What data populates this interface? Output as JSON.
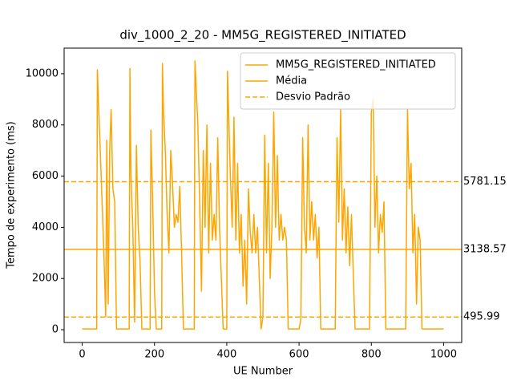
{
  "chart_data": {
    "type": "line",
    "title": "div_1000_2_20 - MM5G_REGISTERED_INITIATED",
    "x_label": "UE Number",
    "y_label": "Tempo de experimento (ms)",
    "xlim": [
      -50,
      1050
    ],
    "ylim": [
      -500,
      11000
    ],
    "xticks": [
      0,
      200,
      400,
      600,
      800,
      1000
    ],
    "yticks": [
      0,
      2000,
      4000,
      6000,
      8000,
      10000
    ],
    "grid": false,
    "legend": "upper right",
    "series": [
      {
        "name": "MM5G_REGISTERED_INITIATED",
        "color": "#ffa500",
        "x": [
          0,
          40,
          42,
          60,
          65,
          68,
          72,
          76,
          80,
          85,
          90,
          95,
          130,
          132,
          135,
          140,
          145,
          150,
          155,
          160,
          165,
          188,
          190,
          195,
          200,
          205,
          220,
          222,
          225,
          230,
          235,
          240,
          245,
          250,
          255,
          260,
          265,
          270,
          275,
          280,
          310,
          312,
          320,
          325,
          330,
          335,
          340,
          345,
          350,
          355,
          360,
          365,
          370,
          375,
          380,
          385,
          390,
          400,
          402,
          410,
          415,
          420,
          425,
          430,
          435,
          440,
          445,
          450,
          455,
          460,
          465,
          470,
          475,
          480,
          485,
          490,
          495,
          500,
          505,
          510,
          515,
          520,
          525,
          530,
          535,
          540,
          545,
          550,
          555,
          560,
          565,
          570,
          600,
          605,
          610,
          615,
          620,
          625,
          630,
          635,
          640,
          645,
          650,
          655,
          660,
          700,
          705,
          710,
          715,
          720,
          725,
          730,
          735,
          740,
          745,
          750,
          755,
          795,
          800,
          805,
          810,
          815,
          820,
          825,
          830,
          835,
          840,
          895,
          900,
          905,
          910,
          915,
          920,
          925,
          930,
          935,
          940,
          1000
        ],
        "values": [
          30,
          30,
          10150,
          3000,
          500,
          7400,
          1000,
          7000,
          8600,
          5500,
          5000,
          30,
          30,
          10200,
          6000,
          4000,
          300,
          7200,
          4000,
          2700,
          30,
          30,
          7800,
          5000,
          1500,
          30,
          30,
          10400,
          8500,
          7000,
          4500,
          3000,
          7000,
          5700,
          4000,
          4500,
          4200,
          5600,
          3000,
          30,
          30,
          10500,
          8000,
          5000,
          1500,
          7000,
          4000,
          8000,
          3000,
          6500,
          3500,
          4500,
          3500,
          7500,
          4000,
          2000,
          30,
          30,
          10100,
          6000,
          4000,
          8300,
          3500,
          6500,
          3000,
          4500,
          1700,
          3500,
          1000,
          5500,
          3800,
          3000,
          4500,
          3000,
          4000,
          2000,
          30,
          500,
          7600,
          3000,
          6500,
          2000,
          4000,
          8500,
          4000,
          6800,
          3500,
          4500,
          3500,
          4000,
          3500,
          30,
          30,
          400,
          7500,
          4000,
          3000,
          8000,
          3500,
          5000,
          3500,
          4500,
          2800,
          4000,
          30,
          30,
          7500,
          4200,
          8600,
          3500,
          5500,
          3000,
          4800,
          2500,
          4500,
          2200,
          30,
          30,
          8500,
          9000,
          4000,
          6000,
          3000,
          4500,
          3800,
          5000,
          30,
          30,
          8600,
          5500,
          6500,
          3000,
          4500,
          1000,
          4000,
          3500,
          30,
          30
        ]
      }
    ],
    "reference_lines": [
      {
        "name": "Média",
        "color": "#ffa500",
        "linestyle": "solid",
        "values": [
          3138.57
        ]
      },
      {
        "name": "Desvio Padrão",
        "color": "#ffa500",
        "linestyle": "dashed",
        "values": [
          5781.15,
          495.99
        ]
      }
    ]
  }
}
